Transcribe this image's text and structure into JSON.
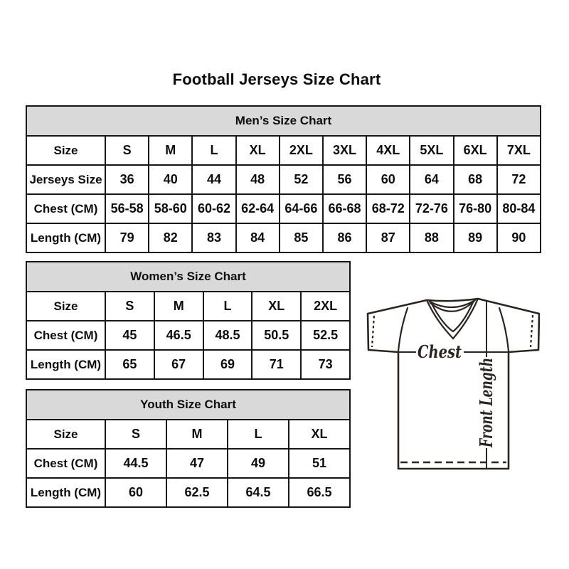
{
  "page": {
    "title": "Football Jerseys Size Chart",
    "background": "#ffffff"
  },
  "colors": {
    "table_header_bg": "#d9d9d9",
    "table_border": "#161616",
    "diagram_line": "#2b2420",
    "text": "#000000"
  },
  "tables": {
    "men": {
      "title": "Men’s Size Chart",
      "rows": [
        {
          "label": "Size",
          "cells": [
            "S",
            "M",
            "L",
            "XL",
            "2XL",
            "3XL",
            "4XL",
            "5XL",
            "6XL",
            "7XL"
          ]
        },
        {
          "label": "Jerseys Size",
          "cells": [
            "36",
            "40",
            "44",
            "48",
            "52",
            "56",
            "60",
            "64",
            "68",
            "72"
          ]
        },
        {
          "label": "Chest (CM)",
          "cells": [
            "56-58",
            "58-60",
            "60-62",
            "62-64",
            "64-66",
            "66-68",
            "68-72",
            "72-76",
            "76-80",
            "80-84"
          ]
        },
        {
          "label": "Length (CM)",
          "cells": [
            "79",
            "82",
            "83",
            "84",
            "85",
            "86",
            "87",
            "88",
            "89",
            "90"
          ]
        }
      ]
    },
    "women": {
      "title": "Women’s Size Chart",
      "rows": [
        {
          "label": "Size",
          "cells": [
            "S",
            "M",
            "L",
            "XL",
            "2XL"
          ]
        },
        {
          "label": "Chest (CM)",
          "cells": [
            "45",
            "46.5",
            "48.5",
            "50.5",
            "52.5"
          ]
        },
        {
          "label": "Length (CM)",
          "cells": [
            "65",
            "67",
            "69",
            "71",
            "73"
          ]
        }
      ]
    },
    "youth": {
      "title": "Youth Size Chart",
      "rows": [
        {
          "label": "Size",
          "cells": [
            "S",
            "M",
            "L",
            "XL"
          ]
        },
        {
          "label": "Chest (CM)",
          "cells": [
            "44.5",
            "47",
            "49",
            "51"
          ]
        },
        {
          "label": "Length (CM)",
          "cells": [
            "60",
            "62.5",
            "64.5",
            "66.5"
          ]
        }
      ]
    }
  },
  "diagram": {
    "chest_label": "Chest",
    "front_length_label": "Front Length"
  }
}
